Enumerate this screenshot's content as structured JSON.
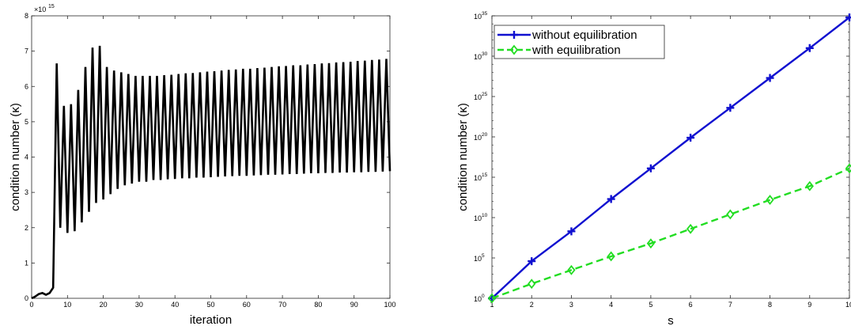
{
  "chart_data": [
    {
      "type": "line",
      "xlabel": "iteration",
      "ylabel": "condition number (κ)",
      "xlim": [
        0,
        100
      ],
      "ylim": [
        0,
        8000000000000000.0
      ],
      "x_ticks": [
        "0",
        "10",
        "20",
        "30",
        "40",
        "50",
        "60",
        "70",
        "80",
        "90",
        "100"
      ],
      "y_ticks": [
        "0",
        "1",
        "2",
        "3",
        "4",
        "5",
        "6",
        "7",
        "8"
      ],
      "y_exponent_base": "×10",
      "y_exponent": "15",
      "grid": false,
      "series": [
        {
          "color": "#000000",
          "style": "solid",
          "points": [
            [
              0,
              0
            ],
            [
              1,
              50000000000000.0
            ],
            [
              2,
              120000000000000.0
            ],
            [
              3,
              150000000000000.0
            ],
            [
              4,
              100000000000000.0
            ],
            [
              5,
              150000000000000.0
            ],
            [
              6,
              300000000000000.0
            ],
            [
              7,
              6650000000000000.0
            ],
            [
              8,
              2000000000000000.0
            ],
            [
              9,
              5450000000000000.0
            ],
            [
              10,
              1850000000000000.0
            ],
            [
              11,
              5500000000000000.0
            ],
            [
              12,
              1900000000000000.0
            ],
            [
              13,
              5900000000000000.0
            ],
            [
              14,
              2150000000000000.0
            ],
            [
              15,
              6550000000000000.0
            ],
            [
              16,
              2450000000000000.0
            ],
            [
              17,
              7100000000000000.0
            ],
            [
              18,
              2700000000000000.0
            ],
            [
              19,
              7150000000000000.0
            ],
            [
              20,
              2800000000000000.0
            ],
            [
              21,
              6550000000000000.0
            ],
            [
              22,
              2950000000000000.0
            ],
            [
              23,
              6450000000000000.0
            ],
            [
              24,
              3100000000000000.0
            ],
            [
              25,
              6400000000000000.0
            ],
            [
              26,
              3200000000000000.0
            ],
            [
              27,
              6350000000000000.0
            ],
            [
              28,
              3250000000000000.0
            ],
            [
              29,
              6300000000000000.0
            ],
            [
              30,
              3300000000000000.0
            ],
            [
              31,
              6300000000000000.0
            ],
            [
              32,
              3300000000000000.0
            ],
            [
              33,
              6300000000000000.0
            ],
            [
              34,
              3350000000000000.0
            ],
            [
              35,
              6300000000000000.0
            ],
            [
              36,
              3350000000000000.0
            ],
            [
              37,
              6320000000000000.0
            ],
            [
              38,
              3370000000000000.0
            ],
            [
              39,
              6330000000000000.0
            ],
            [
              40,
              3380000000000000.0
            ],
            [
              41,
              6350000000000000.0
            ],
            [
              42,
              3400000000000000.0
            ],
            [
              43,
              6370000000000000.0
            ],
            [
              44,
              3400000000000000.0
            ],
            [
              45,
              6380000000000000.0
            ],
            [
              46,
              3420000000000000.0
            ],
            [
              47,
              6400000000000000.0
            ],
            [
              48,
              3420000000000000.0
            ],
            [
              49,
              6420000000000000.0
            ],
            [
              50,
              3430000000000000.0
            ],
            [
              51,
              6430000000000000.0
            ],
            [
              52,
              3440000000000000.0
            ],
            [
              53,
              6450000000000000.0
            ],
            [
              54,
              3450000000000000.0
            ],
            [
              55,
              6470000000000000.0
            ],
            [
              56,
              3460000000000000.0
            ],
            [
              57,
              6480000000000000.0
            ],
            [
              58,
              3470000000000000.0
            ],
            [
              59,
              6500000000000000.0
            ],
            [
              60,
              3470000000000000.0
            ],
            [
              61,
              6500000000000000.0
            ],
            [
              62,
              3480000000000000.0
            ],
            [
              63,
              6520000000000000.0
            ],
            [
              64,
              3490000000000000.0
            ],
            [
              65,
              6530000000000000.0
            ],
            [
              66,
              3500000000000000.0
            ],
            [
              67,
              6550000000000000.0
            ],
            [
              68,
              3500000000000000.0
            ],
            [
              69,
              6570000000000000.0
            ],
            [
              70,
              3510000000000000.0
            ],
            [
              71,
              6580000000000000.0
            ],
            [
              72,
              3520000000000000.0
            ],
            [
              73,
              6600000000000000.0
            ],
            [
              74,
              3520000000000000.0
            ],
            [
              75,
              6600000000000000.0
            ],
            [
              76,
              3530000000000000.0
            ],
            [
              77,
              6620000000000000.0
            ],
            [
              78,
              3540000000000000.0
            ],
            [
              79,
              6630000000000000.0
            ],
            [
              80,
              3540000000000000.0
            ],
            [
              81,
              6650000000000000.0
            ],
            [
              82,
              3550000000000000.0
            ],
            [
              83,
              6660000000000000.0
            ],
            [
              84,
              3550000000000000.0
            ],
            [
              85,
              6680000000000000.0
            ],
            [
              86,
              3560000000000000.0
            ],
            [
              87,
              6690000000000000.0
            ],
            [
              88,
              3560000000000000.0
            ],
            [
              89,
              6700000000000000.0
            ],
            [
              90,
              3570000000000000.0
            ],
            [
              91,
              6720000000000000.0
            ],
            [
              92,
              3570000000000000.0
            ],
            [
              93,
              6730000000000000.0
            ],
            [
              94,
              3580000000000000.0
            ],
            [
              95,
              6750000000000000.0
            ],
            [
              96,
              3580000000000000.0
            ],
            [
              97,
              6760000000000000.0
            ],
            [
              98,
              3590000000000000.0
            ],
            [
              99,
              6780000000000000.0
            ],
            [
              100,
              3600000000000000.0
            ]
          ]
        }
      ]
    },
    {
      "type": "line",
      "xlabel": "s",
      "ylabel": "condition number (κ)",
      "xlim": [
        1,
        10
      ],
      "ylim_log10": [
        0,
        35
      ],
      "y_scale": "log",
      "x_ticks": [
        "1",
        "2",
        "3",
        "4",
        "5",
        "6",
        "7",
        "8",
        "9",
        "10"
      ],
      "y_ticks": [
        {
          "base": "10",
          "exp": "0"
        },
        {
          "base": "10",
          "exp": "5"
        },
        {
          "base": "10",
          "exp": "10"
        },
        {
          "base": "10",
          "exp": "15"
        },
        {
          "base": "10",
          "exp": "20"
        },
        {
          "base": "10",
          "exp": "25"
        },
        {
          "base": "10",
          "exp": "30"
        },
        {
          "base": "10",
          "exp": "35"
        }
      ],
      "grid": false,
      "legend_position": "top-left",
      "series": [
        {
          "name": "without equilibration",
          "color": "#1010d0",
          "style": "solid",
          "marker": "plus",
          "x": [
            1,
            2,
            3,
            4,
            5,
            6,
            7,
            8,
            9,
            10
          ],
          "log10_y": [
            0,
            4.6,
            8.3,
            12.3,
            16.1,
            19.9,
            23.6,
            27.3,
            31.0,
            34.8
          ]
        },
        {
          "name": "with equilibration",
          "color": "#22dd22",
          "style": "dashed",
          "marker": "diamond",
          "x": [
            1,
            2,
            3,
            4,
            5,
            6,
            7,
            8,
            9,
            10
          ],
          "log10_y": [
            0,
            1.8,
            3.5,
            5.2,
            6.8,
            8.6,
            10.4,
            12.2,
            13.9,
            16.1
          ]
        }
      ]
    }
  ]
}
